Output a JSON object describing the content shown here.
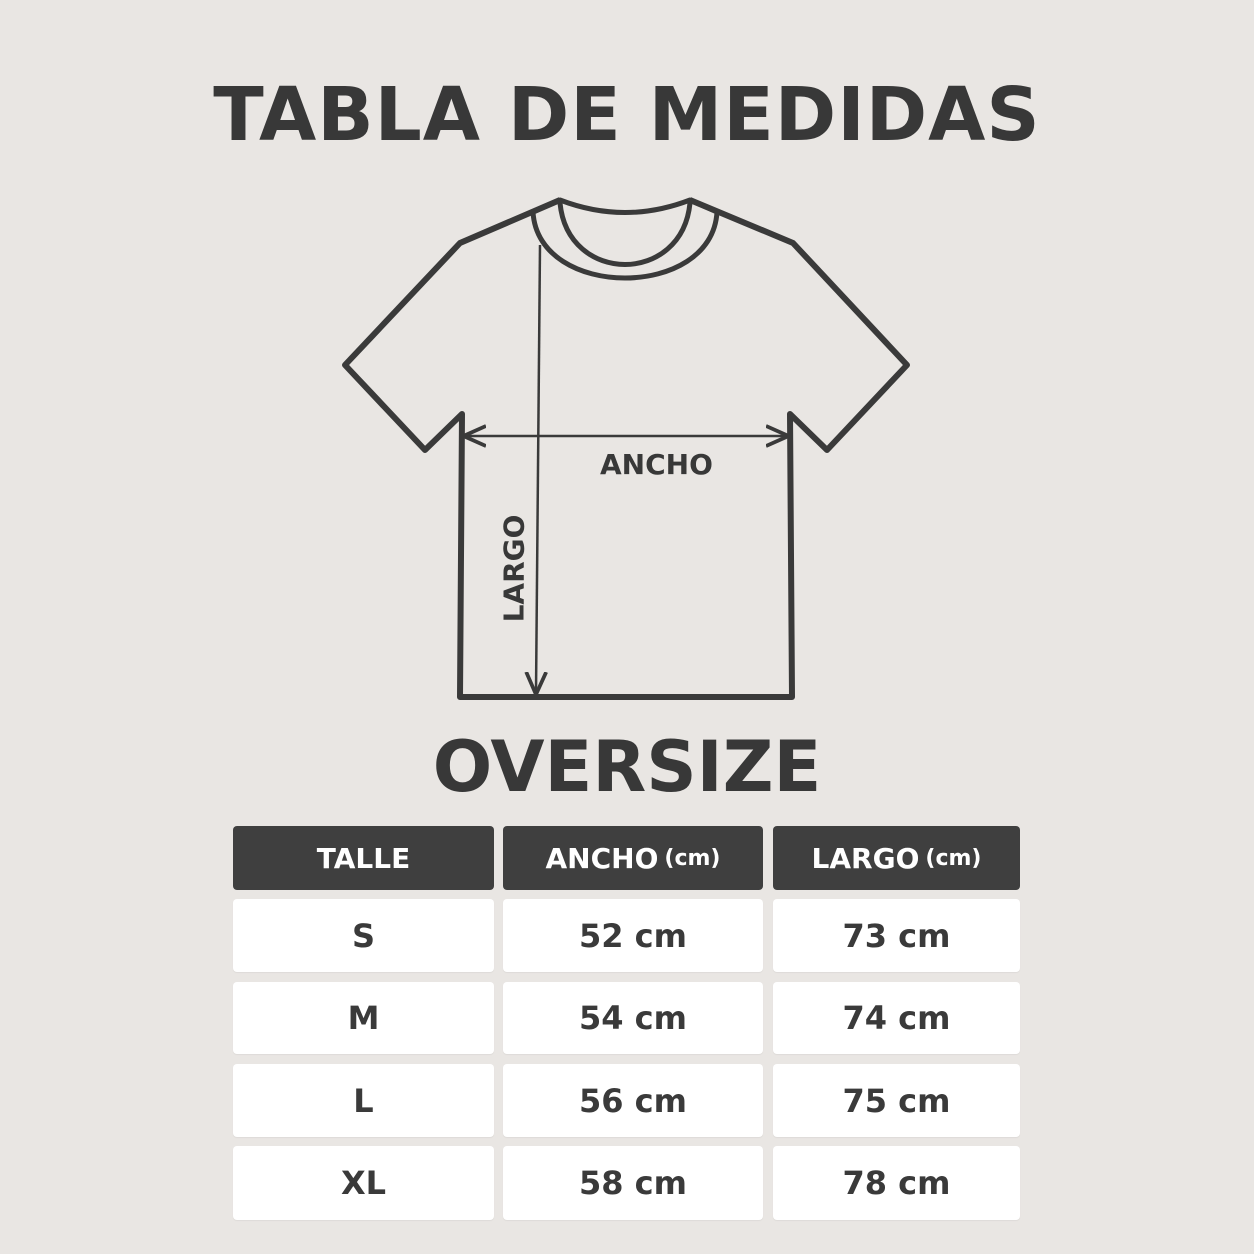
{
  "title": "TABLA DE MEDIDAS",
  "subtitle": "OVERSIZE",
  "diagram": {
    "width_label": "ANCHO",
    "length_label": "LARGO"
  },
  "table": {
    "headers": [
      {
        "label": "TALLE",
        "unit": ""
      },
      {
        "label": "ANCHO",
        "unit": "(cm)"
      },
      {
        "label": "LARGO",
        "unit": "(cm)"
      }
    ],
    "rows": [
      [
        "S",
        "52 cm",
        "73 cm"
      ],
      [
        "M",
        "54 cm",
        "74 cm"
      ],
      [
        "L",
        "56 cm",
        "75 cm"
      ],
      [
        "XL",
        "58 cm",
        "78 cm"
      ]
    ]
  },
  "colors": {
    "background": "#e9e6e3",
    "header": "#3f3f3f",
    "text": "#3a3a3a"
  }
}
